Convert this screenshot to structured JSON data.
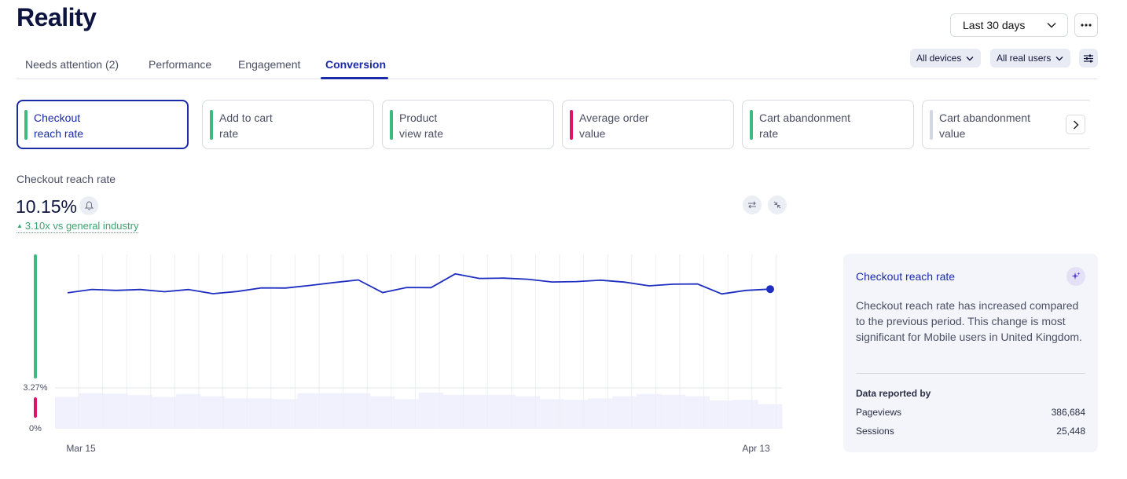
{
  "page": {
    "title": "Reality"
  },
  "header": {
    "range_label": "Last 30 days"
  },
  "tabs": [
    {
      "label": "Needs attention (2)"
    },
    {
      "label": "Performance"
    },
    {
      "label": "Engagement"
    },
    {
      "label": "Conversion",
      "active": true
    }
  ],
  "filters": {
    "devices": "All devices",
    "users": "All real users"
  },
  "metrics": [
    {
      "line1": "Checkout",
      "line2": "reach rate",
      "color": "#3dba7e",
      "selected": true
    },
    {
      "line1": "Add to cart",
      "line2": "rate",
      "color": "#3dba7e"
    },
    {
      "line1": "Product",
      "line2": "view rate",
      "color": "#3dba7e"
    },
    {
      "line1": "Average order",
      "line2": "value",
      "color": "#e0136b"
    },
    {
      "line1": "Cart abandonment",
      "line2": "rate",
      "color": "#3dba7e"
    },
    {
      "line1": "Cart abandonment",
      "line2": "value",
      "color": "#d3d6e3"
    }
  ],
  "metric_detail": {
    "title": "Checkout reach rate",
    "value": "10.15%",
    "comparison": "3.10x vs general industry",
    "comparison_color": "#3aa46f"
  },
  "chart_data": {
    "type": "line",
    "title": "Checkout reach rate",
    "series": [
      {
        "name": "Checkout reach rate",
        "values": [
          10.2,
          10.45,
          10.38,
          10.44,
          10.28,
          10.44,
          10.14,
          10.3,
          10.56,
          10.55,
          10.74,
          10.95,
          11.14,
          10.22,
          10.59,
          10.58,
          11.58,
          11.25,
          11.27,
          11.19,
          10.99,
          11.02,
          11.12,
          10.98,
          10.71,
          10.83,
          10.85,
          10.12,
          10.38,
          10.47
        ],
        "color": "#1e2ec0"
      }
    ],
    "background_bars": {
      "name": "Pageviews",
      "values": [
        0.88,
        0.98,
        0.97,
        0.93,
        0.88,
        0.96,
        0.9,
        0.84,
        0.84,
        0.82,
        0.98,
        0.98,
        0.98,
        0.9,
        0.82,
        1.0,
        0.94,
        0.94,
        0.94,
        0.9,
        0.82,
        0.8,
        0.84,
        0.9,
        0.96,
        0.94,
        0.9,
        0.78,
        0.8,
        0.68
      ],
      "color": "#f0f1fc"
    },
    "x_labels": [
      "Mar 15",
      "Apr 13"
    ],
    "threshold_labels": [
      "3.27%",
      "0%"
    ],
    "threshold_colors": {
      "good": "#3dba7e",
      "poor": "#e0136b"
    },
    "ylim": [
      3.27,
      13.0
    ]
  },
  "insight": {
    "title": "Checkout reach rate",
    "text": "Checkout reach rate has increased compared to the previous period. This change is most significant for Mobile users in United Kingdom.",
    "data_title": "Data reported by",
    "rows": [
      {
        "label": "Pageviews",
        "value": "386,684"
      },
      {
        "label": "Sessions",
        "value": "25,448"
      }
    ]
  }
}
